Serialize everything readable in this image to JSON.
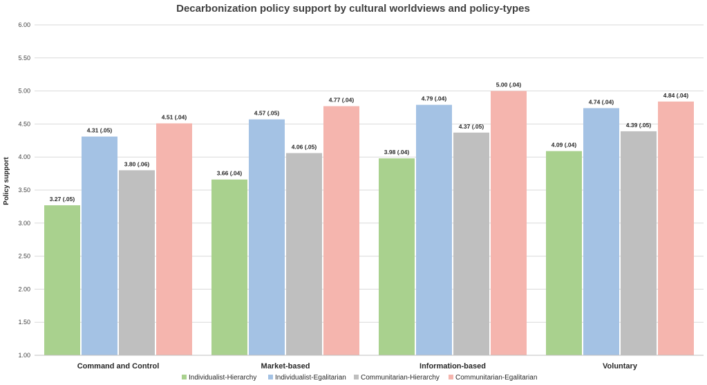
{
  "chart_data": {
    "type": "bar",
    "title": "Decarbonization policy support by cultural worldviews and policy-types",
    "xlabel": "",
    "ylabel": "Policy support",
    "ylim": [
      1.0,
      6.0
    ],
    "yticks": [
      "1.00",
      "1.50",
      "2.00",
      "2.50",
      "3.00",
      "3.50",
      "4.00",
      "4.50",
      "5.00",
      "5.50",
      "6.00"
    ],
    "categories": [
      "Command and Control",
      "Market-based",
      "Information-based",
      "Voluntary"
    ],
    "series": [
      {
        "name": "Individualist-Hierarchy",
        "color": "#a9d18e",
        "values": [
          3.27,
          3.66,
          3.98,
          4.09
        ],
        "labels": [
          "3.27 (.05)",
          "3.66 (.04)",
          "3.98 (.04)",
          "4.09 (.04)"
        ]
      },
      {
        "name": "Individualist-Egalitarian",
        "color": "#a4c2e4",
        "values": [
          4.31,
          4.57,
          4.79,
          4.74
        ],
        "labels": [
          "4.31 (.05)",
          "4.57 (.05)",
          "4.79 (.04)",
          "4.74 (.04)"
        ]
      },
      {
        "name": "Communitarian-Hierarchy",
        "color": "#bfbfbf",
        "values": [
          3.8,
          4.06,
          4.37,
          4.39
        ],
        "labels": [
          "3.80 (.06)",
          "4.06 (.05)",
          "4.37 (.05)",
          "4.39 (.05)"
        ]
      },
      {
        "name": "Communitarian-Egalitarian",
        "color": "#f5b5ae",
        "values": [
          4.51,
          4.77,
          5.0,
          4.84
        ],
        "labels": [
          "4.51 (.04)",
          "4.77 (.04)",
          "5.00 (.04)",
          "4.84 (.04)"
        ]
      }
    ],
    "grid": true,
    "legend_position": "bottom"
  }
}
